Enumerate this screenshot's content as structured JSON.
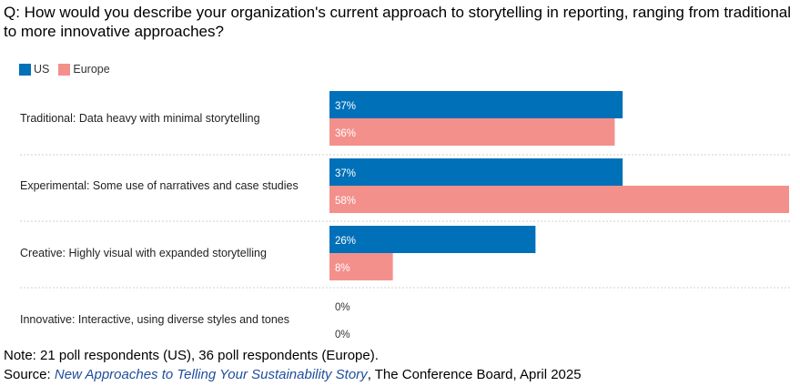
{
  "question": "Q: How would you describe your organization's current approach to storytelling in reporting, ranging from traditional to more innovative approaches?",
  "legend": [
    {
      "name": "US",
      "color": "#0070b8"
    },
    {
      "name": "Europe",
      "color": "#f4908c"
    }
  ],
  "chart_data": {
    "type": "bar",
    "orientation": "horizontal",
    "categories": [
      "Traditional: Data heavy with minimal storytelling",
      "Experimental: Some use of narratives and case studies",
      "Creative: Highly visual with expanded storytelling",
      "Innovative: Interactive, using diverse styles and tones"
    ],
    "series": [
      {
        "name": "US",
        "color": "#0070b8",
        "values": [
          37,
          37,
          26,
          0
        ],
        "labels": [
          "37%",
          "37%",
          "26%",
          "0%"
        ]
      },
      {
        "name": "Europe",
        "color": "#f4908c",
        "values": [
          36,
          58,
          8,
          0
        ],
        "labels": [
          "36%",
          "58%",
          "8%",
          "0%"
        ]
      }
    ],
    "xlim": [
      0,
      58
    ],
    "grid": false,
    "legend_position": "top-left"
  },
  "footer": {
    "note": "Note: 21 poll respondents (US), 36 poll respondents (Europe).",
    "source_prefix": "Source: ",
    "source_title": "New Approaches to Telling Your Sustainability Story",
    "source_suffix": ", The Conference Board, April 2025"
  }
}
